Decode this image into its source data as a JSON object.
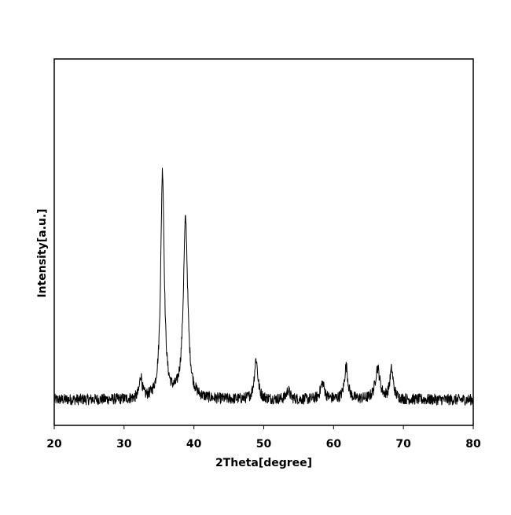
{
  "chart_data": {
    "type": "line",
    "title": "",
    "xlabel": "2Theta[degree]",
    "ylabel": "Intensity[a.u.]",
    "xlim": [
      20,
      80
    ],
    "ylim": [
      0,
      100
    ],
    "x_ticks": [
      "20",
      "30",
      "40",
      "50",
      "60",
      "70",
      "80"
    ],
    "y_ticks": [],
    "grid": false,
    "legend": "none",
    "line_color": "#000000",
    "baseline_intensity": 7,
    "noise_amplitude": 1.5,
    "peaks": [
      {
        "two_theta": 32.4,
        "intensity": 6,
        "fwhm": 0.45
      },
      {
        "two_theta": 35.5,
        "intensity": 62,
        "fwhm": 0.6
      },
      {
        "two_theta": 38.8,
        "intensity": 49,
        "fwhm": 0.75
      },
      {
        "two_theta": 48.9,
        "intensity": 11,
        "fwhm": 0.6
      },
      {
        "two_theta": 53.5,
        "intensity": 2.5,
        "fwhm": 0.6
      },
      {
        "two_theta": 58.4,
        "intensity": 4.5,
        "fwhm": 0.7
      },
      {
        "two_theta": 61.8,
        "intensity": 9,
        "fwhm": 0.6
      },
      {
        "two_theta": 66.3,
        "intensity": 8.5,
        "fwhm": 0.8
      },
      {
        "two_theta": 68.3,
        "intensity": 8,
        "fwhm": 0.6
      }
    ]
  }
}
